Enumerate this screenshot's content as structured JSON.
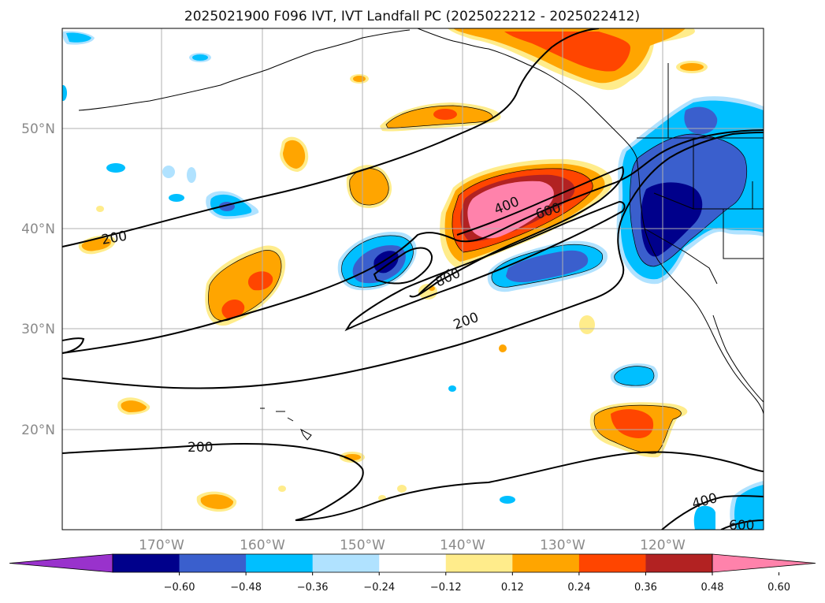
{
  "title": "2025021900 F096 IVT, IVT Landfall PC (2025022212 - 2025022412)",
  "lat_labels": [
    "50°N",
    "40°N",
    "30°N",
    "20°N"
  ],
  "lon_labels": [
    "170°W",
    "160°W",
    "150°W",
    "140°W",
    "130°W",
    "120°W"
  ],
  "colorbar": {
    "colors": [
      "#9932cc",
      "#00008b",
      "#3a5fcd",
      "#00bfff",
      "#b0e2ff",
      "#ffffff",
      "#ffec8b",
      "#ffa500",
      "#ff4500",
      "#b22222",
      "#ff82ab"
    ],
    "tick_labels": [
      "−0.60",
      "−0.48",
      "−0.36",
      "−0.24",
      "−0.12",
      "0.12",
      "0.24",
      "0.36",
      "0.48",
      "0.60"
    ]
  },
  "contour_labels": [
    {
      "text": "200"
    },
    {
      "text": "400"
    },
    {
      "text": "600"
    },
    {
      "text": "800"
    },
    {
      "text": "200"
    },
    {
      "text": "200"
    },
    {
      "text": "400"
    },
    {
      "text": "600"
    }
  ]
}
